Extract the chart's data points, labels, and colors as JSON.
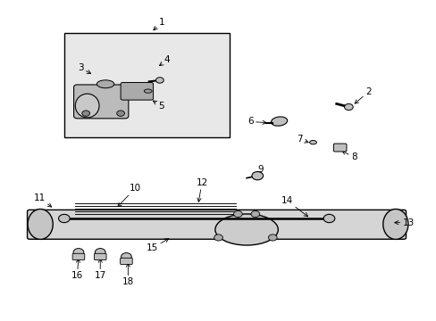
{
  "bg_color": "#ffffff",
  "fig_width": 4.89,
  "fig_height": 3.6,
  "dpi": 100,
  "line_color": "#000000",
  "text_color": "#000000",
  "box_fill": "#e8e8e8",
  "part_fill": "#c0c0c0",
  "dark_fill": "#888888",
  "part_fontsize": 7.5,
  "labels": {
    "1": [
      0.37,
      0.935,
      0.345,
      0.902
    ],
    "2": [
      0.845,
      0.715,
      0.808,
      0.672
    ],
    "3": [
      0.183,
      0.79,
      0.213,
      0.768
    ],
    "4": [
      0.382,
      0.815,
      0.358,
      0.792
    ],
    "5": [
      0.368,
      0.672,
      0.343,
      0.693
    ],
    "6": [
      0.574,
      0.622,
      0.618,
      0.618
    ],
    "7": [
      0.688,
      0.567,
      0.714,
      0.553
    ],
    "8": [
      0.812,
      0.51,
      0.778,
      0.535
    ],
    "9": [
      0.597,
      0.472,
      0.592,
      0.45
    ],
    "10": [
      0.308,
      0.412,
      0.263,
      0.348
    ],
    "11": [
      0.088,
      0.382,
      0.122,
      0.348
    ],
    "12": [
      0.462,
      0.43,
      0.453,
      0.36
    ],
    "13": [
      0.937,
      0.305,
      0.898,
      0.305
    ],
    "14": [
      0.658,
      0.374,
      0.712,
      0.318
    ],
    "15": [
      0.348,
      0.225,
      0.392,
      0.26
    ],
    "16": [
      0.175,
      0.138,
      0.178,
      0.202
    ],
    "17": [
      0.228,
      0.138,
      0.228,
      0.202
    ],
    "18": [
      0.292,
      0.118,
      0.292,
      0.188
    ]
  }
}
